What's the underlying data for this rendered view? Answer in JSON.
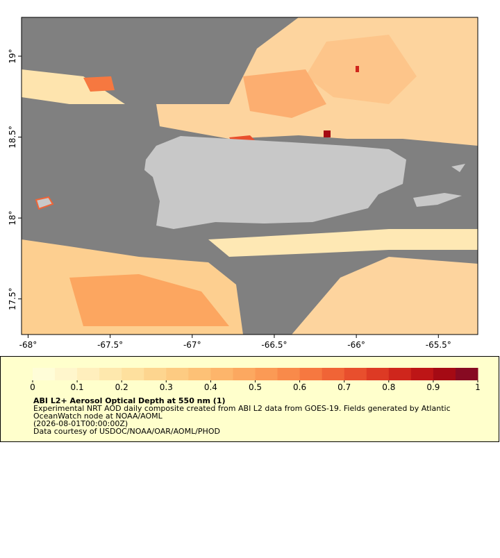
{
  "chart_data": {
    "type": "map",
    "xlim": [
      -68.04,
      -65.26
    ],
    "ylim": [
      17.28,
      19.24
    ],
    "xticks": [
      {
        "value": -68,
        "label": "-68°"
      },
      {
        "value": -67.5,
        "label": "-67.5°"
      },
      {
        "value": -67,
        "label": "-67°"
      },
      {
        "value": -66.5,
        "label": "-66.5°"
      },
      {
        "value": -66,
        "label": "-66°"
      },
      {
        "value": -65.5,
        "label": "-65.5°"
      }
    ],
    "yticks": [
      {
        "value": 17.5,
        "label": "17.5°"
      },
      {
        "value": 18,
        "label": "18°"
      },
      {
        "value": 18.5,
        "label": "18.5°"
      },
      {
        "value": 19,
        "label": "19°"
      }
    ],
    "colorbar": {
      "lim": [
        0,
        1
      ],
      "ticks": [
        0,
        0.1,
        0.2,
        0.3,
        0.4,
        0.5,
        0.6,
        0.7,
        0.8,
        0.9,
        1
      ],
      "colors": [
        "#fffdd8",
        "#fff6cc",
        "#ffefbd",
        "#fee8ad",
        "#fee09e",
        "#fdd58f",
        "#fdcb82",
        "#fdc176",
        "#fdb56b",
        "#fca860",
        "#fb9a55",
        "#f98a4a",
        "#f67840",
        "#f06436",
        "#e84f2d",
        "#dd3a24",
        "#cf261c",
        "#bd1516",
        "#a50a14",
        "#870a22"
      ]
    },
    "title": "ABI L2+ Aerosol Optical Depth at 550 nm (1)",
    "notes": [
      "Experimental NRT AOD daily composite created from ABI L2 data from GOES-19. Fields generated by Atlantic",
      "OceanWatch node at NOAA/AOML",
      "(2026-08-01T00:00:00Z)",
      "Data courtesy of USDOC/NOAA/OAR/AOML/PHOD"
    ]
  }
}
